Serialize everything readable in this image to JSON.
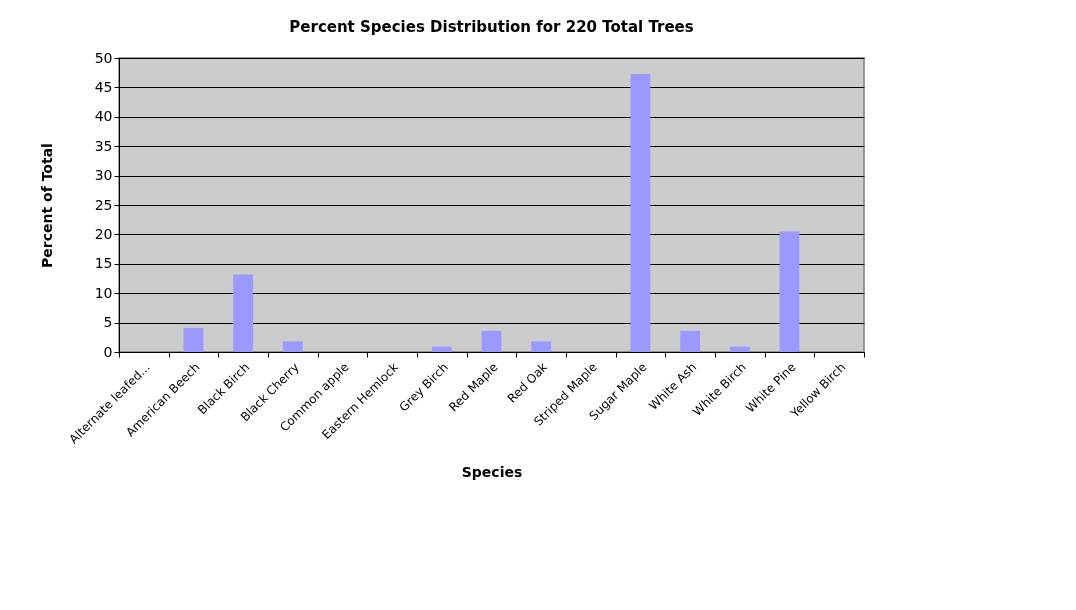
{
  "chart_data": {
    "type": "bar",
    "title": "Percent Species Distribution for 220 Total Trees",
    "xlabel": "Species",
    "ylabel": "Percent of Total",
    "categories": [
      "Alternate leafed...",
      "American Beech",
      "Black Birch",
      "Black Cherry",
      "Common apple",
      "Eastern Hemlock",
      "Grey Birch",
      "Red Maple",
      "Red Oak",
      "Striped Maple",
      "Sugar Maple",
      "White Ash",
      "White Birch",
      "White Pine",
      "Yellow Birch"
    ],
    "values": [
      0,
      4.1,
      13.2,
      1.8,
      0,
      0,
      0.9,
      3.6,
      1.8,
      0,
      47.3,
      3.6,
      0.9,
      20.5,
      0
    ],
    "color": "#9999ff",
    "ylim": [
      0,
      50
    ],
    "yticks": [
      0,
      5,
      10,
      15,
      20,
      25,
      30,
      35,
      40,
      45,
      50
    ],
    "grid": "y"
  }
}
